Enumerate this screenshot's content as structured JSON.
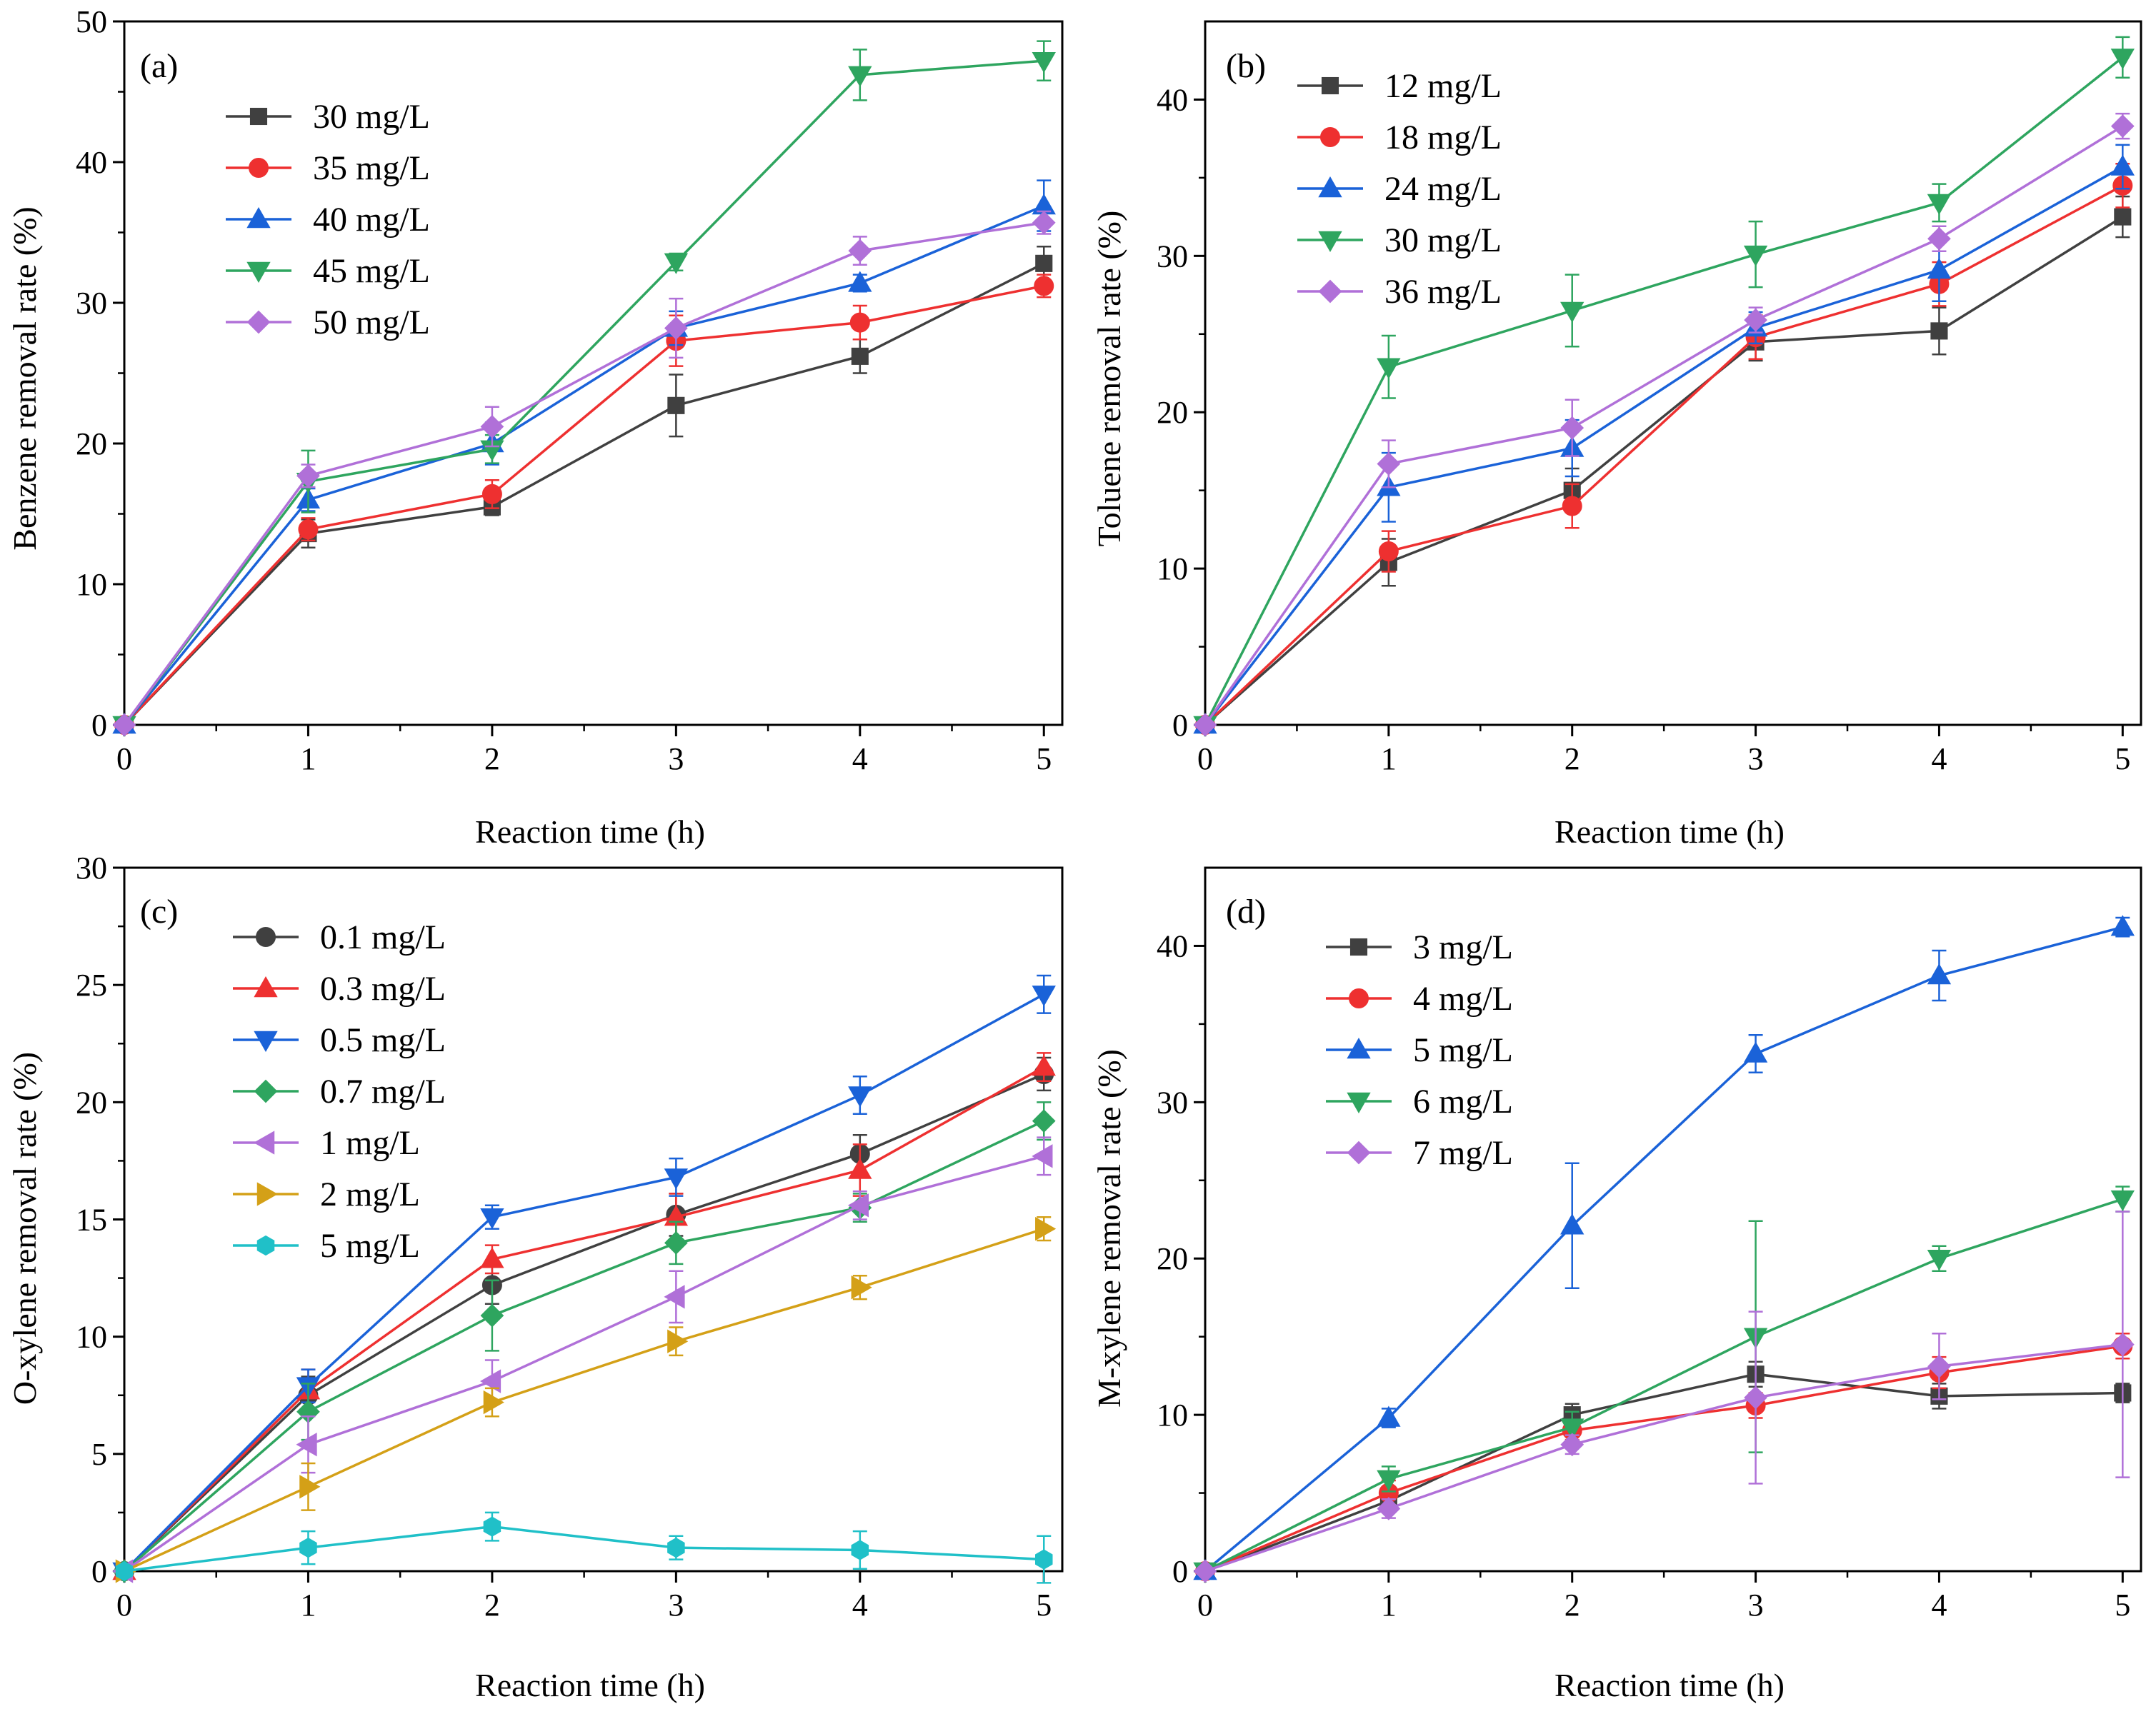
{
  "figure": {
    "x_values": [
      0,
      1,
      2,
      3,
      4,
      5
    ],
    "xlabel": "Reaction time (h)"
  },
  "chart_data": [
    {
      "type": "line",
      "panel_label": "(a)",
      "title": "",
      "xlabel": "Reaction time (h)",
      "ylabel": "Benzene removal rate (%)",
      "xlim": [
        0,
        5.1
      ],
      "ylim": [
        0,
        50
      ],
      "xticks": [
        0,
        1,
        2,
        3,
        4,
        5
      ],
      "yticks": [
        0,
        10,
        20,
        30,
        40,
        50
      ],
      "x": [
        0,
        1,
        2,
        3,
        4,
        5
      ],
      "legend_position": "top-left",
      "series": [
        {
          "name": "30 mg/L",
          "color": "#404040",
          "marker": "square",
          "values": [
            0,
            13.6,
            15.5,
            22.7,
            26.2,
            32.8
          ],
          "errors": [
            0,
            1.0,
            0.6,
            2.2,
            1.2,
            1.2
          ]
        },
        {
          "name": "35 mg/L",
          "color": "#ee3030",
          "marker": "circle",
          "values": [
            0,
            13.9,
            16.4,
            27.3,
            28.6,
            31.2
          ],
          "errors": [
            0,
            0.8,
            1.0,
            1.8,
            1.2,
            0.8
          ]
        },
        {
          "name": "40 mg/L",
          "color": "#1a62d8",
          "marker": "triangle-up",
          "values": [
            0,
            16.0,
            20.0,
            28.2,
            31.4,
            36.9
          ],
          "errors": [
            0,
            0.8,
            1.5,
            1.2,
            0.6,
            1.8
          ]
        },
        {
          "name": "45 mg/L",
          "color": "#2ea55f",
          "marker": "triangle-down",
          "values": [
            0,
            17.3,
            19.6,
            32.9,
            46.2,
            47.2
          ],
          "errors": [
            0,
            2.2,
            1.0,
            0.6,
            1.8,
            1.4
          ]
        },
        {
          "name": "50 mg/L",
          "color": "#b070d8",
          "marker": "diamond",
          "values": [
            0,
            17.7,
            21.2,
            28.2,
            33.7,
            35.7
          ],
          "errors": [
            0,
            0.8,
            1.4,
            2.1,
            1.0,
            0.8
          ]
        }
      ]
    },
    {
      "type": "line",
      "panel_label": "(b)",
      "title": "",
      "xlabel": "Reaction time (h)",
      "ylabel": "Toluene removal rate (%)",
      "xlim": [
        0,
        5.1
      ],
      "ylim": [
        0,
        45
      ],
      "xticks": [
        0,
        1,
        2,
        3,
        4,
        5
      ],
      "yticks": [
        0,
        10,
        20,
        30,
        40
      ],
      "x": [
        0,
        1,
        2,
        3,
        4,
        5
      ],
      "legend_position": "top-left",
      "series": [
        {
          "name": "12 mg/L",
          "color": "#404040",
          "marker": "square",
          "values": [
            0,
            10.4,
            15.0,
            24.5,
            25.2,
            32.5
          ],
          "errors": [
            0,
            1.5,
            1.4,
            1.2,
            1.5,
            1.3
          ]
        },
        {
          "name": "18 mg/L",
          "color": "#ee3030",
          "marker": "circle",
          "values": [
            0,
            11.1,
            14.0,
            24.8,
            28.2,
            34.5
          ],
          "errors": [
            0,
            1.3,
            1.4,
            1.4,
            1.4,
            1.4
          ]
        },
        {
          "name": "24 mg/L",
          "color": "#1a62d8",
          "marker": "triangle-up",
          "values": [
            0,
            15.2,
            17.7,
            25.4,
            29.1,
            35.7
          ],
          "errors": [
            0,
            2.2,
            1.8,
            1.0,
            2.0,
            1.4
          ]
        },
        {
          "name": "30 mg/L",
          "color": "#2ea55f",
          "marker": "triangle-down",
          "values": [
            0,
            22.9,
            26.5,
            30.1,
            33.4,
            42.7
          ],
          "errors": [
            0,
            2.0,
            2.3,
            2.1,
            1.2,
            1.3
          ]
        },
        {
          "name": "36 mg/L",
          "color": "#b070d8",
          "marker": "diamond",
          "values": [
            0,
            16.7,
            19.0,
            25.9,
            31.1,
            38.3
          ],
          "errors": [
            0,
            1.5,
            1.8,
            0.8,
            0.8,
            0.8
          ]
        }
      ]
    },
    {
      "type": "line",
      "panel_label": "(c)",
      "title": "",
      "xlabel": "Reaction time (h)",
      "ylabel": "O-xylene removal rate (%)",
      "xlim": [
        0,
        5.1
      ],
      "ylim": [
        0,
        30
      ],
      "xticks": [
        0,
        1,
        2,
        3,
        4,
        5
      ],
      "yticks": [
        0,
        5,
        10,
        15,
        20,
        25,
        30
      ],
      "x": [
        0,
        1,
        2,
        3,
        4,
        5
      ],
      "legend_position": "top-left",
      "series": [
        {
          "name": "0.1 mg/L",
          "color": "#404040",
          "marker": "circle",
          "values": [
            0,
            7.5,
            12.2,
            15.2,
            17.8,
            21.2
          ],
          "errors": [
            0,
            0.8,
            0.8,
            0.9,
            0.8,
            0.7
          ]
        },
        {
          "name": "0.3 mg/L",
          "color": "#ee3030",
          "marker": "triangle-up",
          "values": [
            0,
            7.7,
            13.3,
            15.1,
            17.1,
            21.5
          ],
          "errors": [
            0,
            0.9,
            0.6,
            1.0,
            1.1,
            0.6
          ]
        },
        {
          "name": "0.5 mg/L",
          "color": "#1a62d8",
          "marker": "triangle-down",
          "values": [
            0,
            7.9,
            15.1,
            16.8,
            20.3,
            24.6
          ],
          "errors": [
            0,
            0.7,
            0.5,
            0.8,
            0.8,
            0.8
          ]
        },
        {
          "name": "0.7 mg/L",
          "color": "#2ea55f",
          "marker": "diamond",
          "values": [
            0,
            6.8,
            10.9,
            14.0,
            15.5,
            19.2
          ],
          "errors": [
            0,
            1.2,
            1.5,
            0.9,
            0.6,
            0.8
          ]
        },
        {
          "name": "1 mg/L",
          "color": "#b070d8",
          "marker": "triangle-left",
          "values": [
            0,
            5.4,
            8.1,
            11.7,
            15.6,
            17.7
          ],
          "errors": [
            0,
            1.2,
            0.9,
            1.1,
            0.6,
            0.8
          ]
        },
        {
          "name": "2 mg/L",
          "color": "#d4a017",
          "marker": "triangle-right",
          "values": [
            0,
            3.6,
            7.2,
            9.8,
            12.1,
            14.6
          ],
          "errors": [
            0,
            1.0,
            0.6,
            0.6,
            0.5,
            0.5
          ]
        },
        {
          "name": "5 mg/L",
          "color": "#20c0c8",
          "marker": "hexagon",
          "values": [
            0,
            1.0,
            1.9,
            1.0,
            0.9,
            0.5
          ],
          "errors": [
            0,
            0.7,
            0.6,
            0.5,
            0.8,
            1.0
          ]
        }
      ]
    },
    {
      "type": "line",
      "panel_label": "(d)",
      "title": "",
      "xlabel": "Reaction time (h)",
      "ylabel": "M-xylene removal rate (%)",
      "xlim": [
        0,
        5.1
      ],
      "ylim": [
        0,
        45
      ],
      "xticks": [
        0,
        1,
        2,
        3,
        4,
        5
      ],
      "yticks": [
        0,
        10,
        20,
        30,
        40
      ],
      "x": [
        0,
        1,
        2,
        3,
        4,
        5
      ],
      "legend_position": "top-left",
      "series": [
        {
          "name": "3 mg/L",
          "color": "#404040",
          "marker": "square",
          "values": [
            0,
            4.5,
            10.0,
            12.6,
            11.2,
            11.4
          ],
          "errors": [
            0,
            0.5,
            0.7,
            0.8,
            0.8,
            0.6
          ]
        },
        {
          "name": "4 mg/L",
          "color": "#ee3030",
          "marker": "circle",
          "values": [
            0,
            5.0,
            9.0,
            10.6,
            12.7,
            14.4
          ],
          "errors": [
            0,
            0.8,
            0.6,
            0.8,
            1.0,
            0.8
          ]
        },
        {
          "name": "5 mg/L",
          "color": "#1a62d8",
          "marker": "triangle-up",
          "values": [
            0,
            9.8,
            22.1,
            33.1,
            38.1,
            41.2
          ],
          "errors": [
            0,
            0.6,
            4.0,
            1.2,
            1.6,
            0.6
          ]
        },
        {
          "name": "6 mg/L",
          "color": "#2ea55f",
          "marker": "triangle-down",
          "values": [
            0,
            5.9,
            9.2,
            15.0,
            20.0,
            23.8
          ],
          "errors": [
            0,
            0.8,
            1.0,
            7.4,
            0.8,
            0.8
          ]
        },
        {
          "name": "7 mg/L",
          "color": "#b070d8",
          "marker": "diamond",
          "values": [
            0,
            4.0,
            8.1,
            11.1,
            13.1,
            14.5
          ],
          "errors": [
            0,
            0.6,
            0.6,
            5.5,
            2.1,
            8.5
          ]
        }
      ]
    }
  ]
}
